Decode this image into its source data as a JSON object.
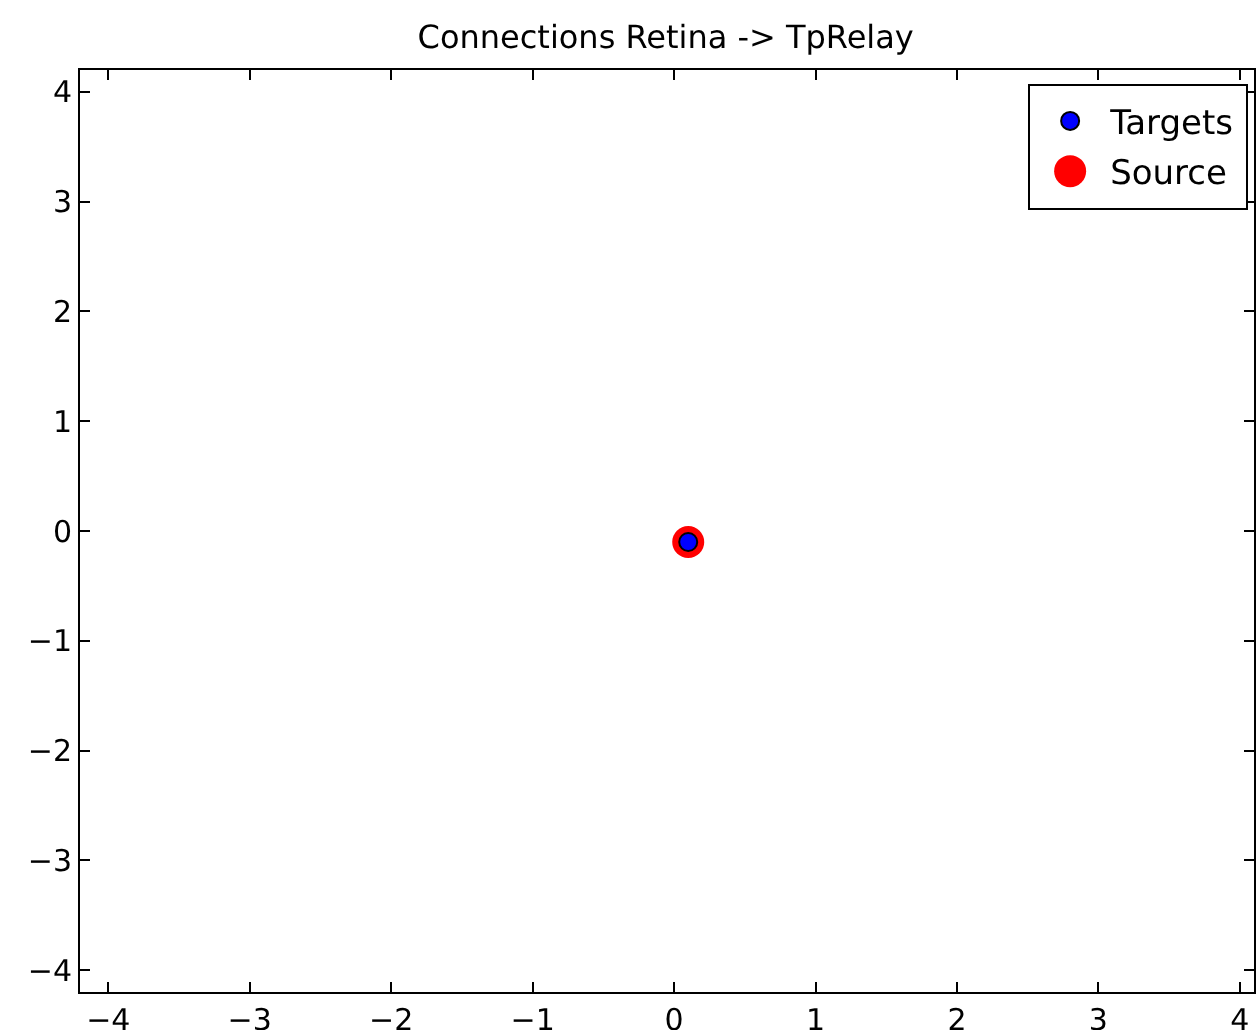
{
  "chart_data": {
    "type": "scatter",
    "title": "Connections Retina -> TpRelay",
    "series": [
      {
        "name": "Targets",
        "color": "#0000ff",
        "x": [
          0.1
        ],
        "values": [
          -0.1
        ]
      },
      {
        "name": "Source",
        "color": "#ff0000",
        "x": [
          0.1
        ],
        "values": [
          -0.1
        ]
      }
    ],
    "xlim": [
      -4.2,
      4.1
    ],
    "ylim": [
      -4.2,
      4.2
    ],
    "xticks": [
      -4,
      -3,
      -2,
      -1,
      0,
      1,
      2,
      3,
      4
    ],
    "yticks": [
      -4,
      -3,
      -2,
      -1,
      0,
      1,
      2,
      3,
      4
    ],
    "grid": false,
    "legend": "top right",
    "marker": "circle"
  }
}
